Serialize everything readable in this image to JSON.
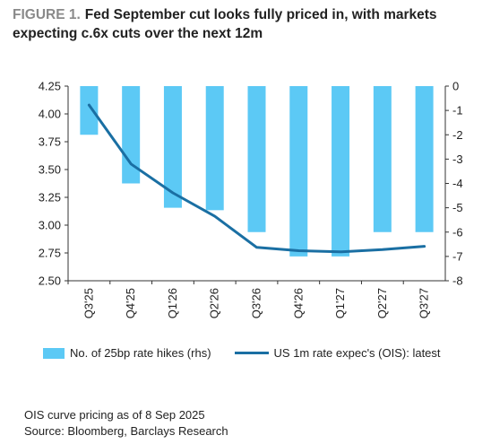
{
  "header": {
    "figure_label": "FIGURE 1.",
    "title": "Fed September cut looks fully priced in, with markets expecting c.6x cuts over the next 12m"
  },
  "chart_data": {
    "type": "bar",
    "categories": [
      "Q3'25",
      "Q4'25",
      "Q1'26",
      "Q2'26",
      "Q3'26",
      "Q4'26",
      "Q1'27",
      "Q2'27",
      "Q3'27"
    ],
    "series": [
      {
        "name": "No. of 25bp rate hikes (rhs)",
        "type": "bar",
        "axis": "right",
        "color": "#5cc9f5",
        "values": [
          -2.0,
          -4.0,
          -5.0,
          -5.1,
          -6.0,
          -7.0,
          -7.0,
          -6.0,
          -6.0
        ]
      },
      {
        "name": "US 1m rate expec's (OIS): latest",
        "type": "line",
        "axis": "left",
        "color": "#1a6fa3",
        "values": [
          4.08,
          3.55,
          3.29,
          3.08,
          2.8,
          2.77,
          2.76,
          2.78,
          2.81
        ]
      }
    ],
    "y_left": {
      "ylim": [
        2.5,
        4.25
      ],
      "ticks": [
        "4.25",
        "4.00",
        "3.75",
        "3.50",
        "3.25",
        "3.00",
        "2.75",
        "2.50"
      ]
    },
    "y_right": {
      "ylim": [
        -8,
        0
      ],
      "ticks": [
        "0",
        "-1",
        "-2",
        "-3",
        "-4",
        "-5",
        "-6",
        "-7",
        "-8"
      ]
    },
    "grid": false,
    "legend": "bottom"
  },
  "footer": {
    "note": "OIS curve pricing as of 8 Sep 2025",
    "source": "Source: Bloomberg, Barclays Research"
  }
}
